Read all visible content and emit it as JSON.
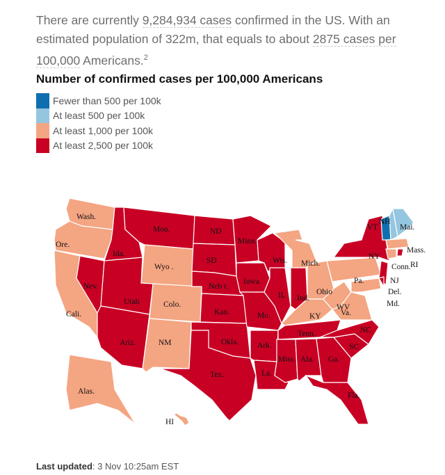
{
  "intro": {
    "t1": "There are currently ",
    "cases": "9,284,934 cases",
    "t2": " confirmed in the US. With an estimated population of 322m, that equals to about ",
    "per100k": "2875 cases per 100,000",
    "t3": " Americans.",
    "footnote": "2"
  },
  "title": "Number of confirmed cases per 100,000 Americans",
  "legend": [
    {
      "label": "Fewer than 500 per 100k",
      "color": "#0f6fae"
    },
    {
      "label": "At least 500 per 100k",
      "color": "#95c6df"
    },
    {
      "label": "At least 1,000 per 100k",
      "color": "#f4a582"
    },
    {
      "label": "At least 2,500 per 100k",
      "color": "#c80024"
    }
  ],
  "states": [
    {
      "id": "wa",
      "label": "Wash.",
      "cat": 2
    },
    {
      "id": "or",
      "label": "Ore.",
      "cat": 2
    },
    {
      "id": "ca",
      "label": "Cali.",
      "cat": 2
    },
    {
      "id": "nv",
      "label": "Nev.",
      "cat": 3
    },
    {
      "id": "id",
      "label": "Ida.",
      "cat": 3
    },
    {
      "id": "mt",
      "label": "Mon.",
      "cat": 3
    },
    {
      "id": "wy",
      "label": "Wyo .",
      "cat": 2
    },
    {
      "id": "ut",
      "label": "Utah",
      "cat": 3
    },
    {
      "id": "co",
      "label": "Colo.",
      "cat": 2
    },
    {
      "id": "az",
      "label": "Ariz.",
      "cat": 3
    },
    {
      "id": "nm",
      "label": "NM",
      "cat": 2
    },
    {
      "id": "nd",
      "label": "ND",
      "cat": 3
    },
    {
      "id": "sd",
      "label": "SD",
      "cat": 3
    },
    {
      "id": "ne",
      "label": "Neb r.",
      "cat": 3
    },
    {
      "id": "ks",
      "label": "Kan.",
      "cat": 3
    },
    {
      "id": "ok",
      "label": "Okla.",
      "cat": 3
    },
    {
      "id": "tx",
      "label": "Tex.",
      "cat": 3
    },
    {
      "id": "mn",
      "label": "Minn.",
      "cat": 3
    },
    {
      "id": "ia",
      "label": "Iowa",
      "cat": 3
    },
    {
      "id": "mo",
      "label": "Mo.",
      "cat": 3
    },
    {
      "id": "ar",
      "label": "Ark.",
      "cat": 3
    },
    {
      "id": "la",
      "label": "La.",
      "cat": 3
    },
    {
      "id": "wi",
      "label": "Wis.",
      "cat": 3
    },
    {
      "id": "il",
      "label": "IL",
      "cat": 3
    },
    {
      "id": "in",
      "label": "Ind.",
      "cat": 3
    },
    {
      "id": "mi",
      "label": "Mich.",
      "cat": 2
    },
    {
      "id": "oh",
      "label": "Ohio",
      "cat": 2
    },
    {
      "id": "ky",
      "label": "KY",
      "cat": 2
    },
    {
      "id": "tn",
      "label": "Tenn.",
      "cat": 3
    },
    {
      "id": "ms",
      "label": "Miss",
      "cat": 3
    },
    {
      "id": "al",
      "label": "Ala.",
      "cat": 3
    },
    {
      "id": "ga",
      "label": "Ga.",
      "cat": 3
    },
    {
      "id": "fl",
      "label": "Fla.",
      "cat": 3
    },
    {
      "id": "sc",
      "label": "SC",
      "cat": 3
    },
    {
      "id": "nc",
      "label": "NC",
      "cat": 3
    },
    {
      "id": "va",
      "label": "Va.",
      "cat": 2
    },
    {
      "id": "wv",
      "label": "WV",
      "cat": 2
    },
    {
      "id": "pa",
      "label": "Pa.",
      "cat": 2
    },
    {
      "id": "ny",
      "label": "NY",
      "cat": 3
    },
    {
      "id": "vt",
      "label": "VT",
      "cat": 0
    },
    {
      "id": "nh",
      "label": "NH",
      "cat": 1
    },
    {
      "id": "me",
      "label": "Mai.",
      "cat": 1
    },
    {
      "id": "ma",
      "label": "Mass.",
      "cat": 2
    },
    {
      "id": "ct",
      "label": "Conn.",
      "cat": 2
    },
    {
      "id": "ri",
      "label": "RI",
      "cat": 3
    },
    {
      "id": "nj",
      "label": "NJ",
      "cat": 3
    },
    {
      "id": "de",
      "label": "Del.",
      "cat": 3
    },
    {
      "id": "md",
      "label": "Md.",
      "cat": 2
    },
    {
      "id": "ak",
      "label": "Alas.",
      "cat": 2
    },
    {
      "id": "hi",
      "label": "HI",
      "cat": 2
    }
  ],
  "updated": {
    "label": "Last updated",
    "value": ": 3 Nov 10:25am EST"
  }
}
